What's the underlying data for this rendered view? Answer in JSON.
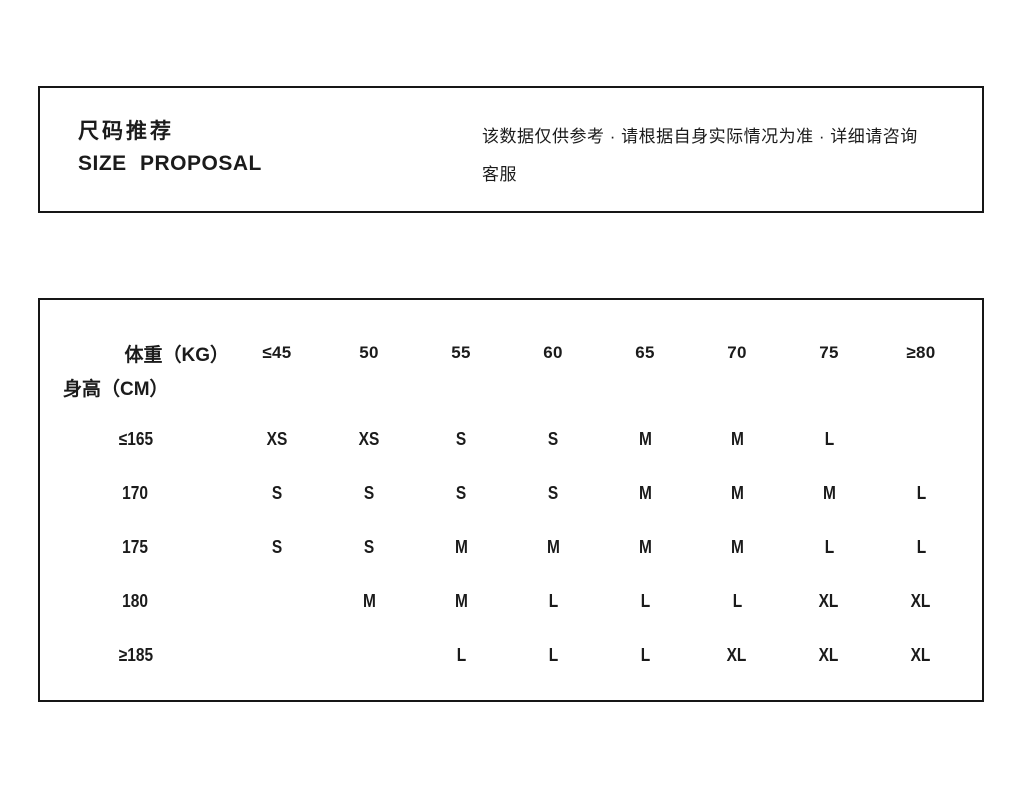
{
  "colors": {
    "background": "#ffffff",
    "ink": "#1b1b1b",
    "border": "#161616"
  },
  "header": {
    "title_zh": "尺码推荐",
    "title_en": "SIZE PROPOSAL",
    "disclaimer_line1": "该数据仅供参考 · 请根据自身实际情况为准 · 详细请咨询",
    "disclaimer_line2": "客服"
  },
  "table": {
    "corner": {
      "top_label": "体重（KG）",
      "bottom_label": "身高（CM）"
    },
    "weight_headers": [
      "≤45",
      "50",
      "55",
      "60",
      "65",
      "70",
      "75",
      "≥80"
    ],
    "rows": [
      {
        "label": "≤165",
        "cells": [
          "XS",
          "XS",
          "S",
          "S",
          "M",
          "M",
          "L",
          ""
        ]
      },
      {
        "label": "170",
        "cells": [
          "S",
          "S",
          "S",
          "S",
          "M",
          "M",
          "M",
          "L"
        ]
      },
      {
        "label": "175",
        "cells": [
          "S",
          "S",
          "M",
          "M",
          "M",
          "M",
          "L",
          "L"
        ]
      },
      {
        "label": "180",
        "cells": [
          "",
          "M",
          "M",
          "L",
          "L",
          "L",
          "XL",
          "XL"
        ]
      },
      {
        "label": "≥185",
        "cells": [
          "",
          "",
          "L",
          "L",
          "L",
          "XL",
          "XL",
          "XL"
        ]
      }
    ]
  },
  "chart_data": {
    "type": "table",
    "title": "尺码推荐 SIZE PROPOSAL",
    "column_axis_label": "体重（KG）",
    "row_axis_label": "身高（CM）",
    "columns": [
      "≤45",
      "50",
      "55",
      "60",
      "65",
      "70",
      "75",
      "≥80"
    ],
    "rows": [
      "≤165",
      "170",
      "175",
      "180",
      "≥185"
    ],
    "values": [
      [
        "XS",
        "XS",
        "S",
        "S",
        "M",
        "M",
        "L",
        ""
      ],
      [
        "S",
        "S",
        "S",
        "S",
        "M",
        "M",
        "M",
        "L"
      ],
      [
        "S",
        "S",
        "M",
        "M",
        "M",
        "M",
        "L",
        "L"
      ],
      [
        "",
        "M",
        "M",
        "L",
        "L",
        "L",
        "XL",
        "XL"
      ],
      [
        "",
        "",
        "L",
        "L",
        "L",
        "XL",
        "XL",
        "XL"
      ]
    ],
    "note": "该数据仅供参考 · 请根据自身实际情况为准 · 详细请咨询客服",
    "layout": "bordered header box above bordered table box, grid lines hidden"
  }
}
